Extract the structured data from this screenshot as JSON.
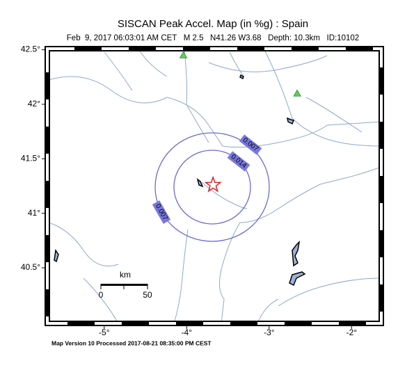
{
  "title": "SISCAN Peak Accel. Map (in %g) : Spain",
  "subtitle": "Feb  9, 2017 06:03:01 AM CET   M 2.5   N41.26 W3.68   Depth: 10.3km   ID:10102",
  "footer": "Map Version 10 Processed 2017-08-21 08:35:00 PM CEST",
  "map": {
    "xlim": [
      -5.69,
      -1.64
    ],
    "ylim": [
      39.99,
      42.51
    ],
    "xticks": [
      {
        "value": -5,
        "label": "-5°"
      },
      {
        "value": -4,
        "label": "-4°"
      },
      {
        "value": -3,
        "label": "-3°"
      },
      {
        "value": -2,
        "label": "-2°"
      }
    ],
    "yticks": [
      {
        "value": 40.5,
        "label": "40.5°"
      },
      {
        "value": 41,
        "label": "41°"
      },
      {
        "value": 41.5,
        "label": "41.5°"
      },
      {
        "value": 42,
        "label": "42°"
      },
      {
        "value": 42.5,
        "label": "42.5°"
      }
    ],
    "epicenter": {
      "lon": -3.68,
      "lat": 41.26
    },
    "stations": [
      {
        "lon": -4.04,
        "lat": 42.45
      },
      {
        "lon": -2.66,
        "lat": 42.1
      }
    ],
    "contour_labels": [
      0.007,
      0.014,
      0.007
    ],
    "scale": {
      "unit": "km",
      "labels": [
        0,
        50
      ]
    }
  }
}
